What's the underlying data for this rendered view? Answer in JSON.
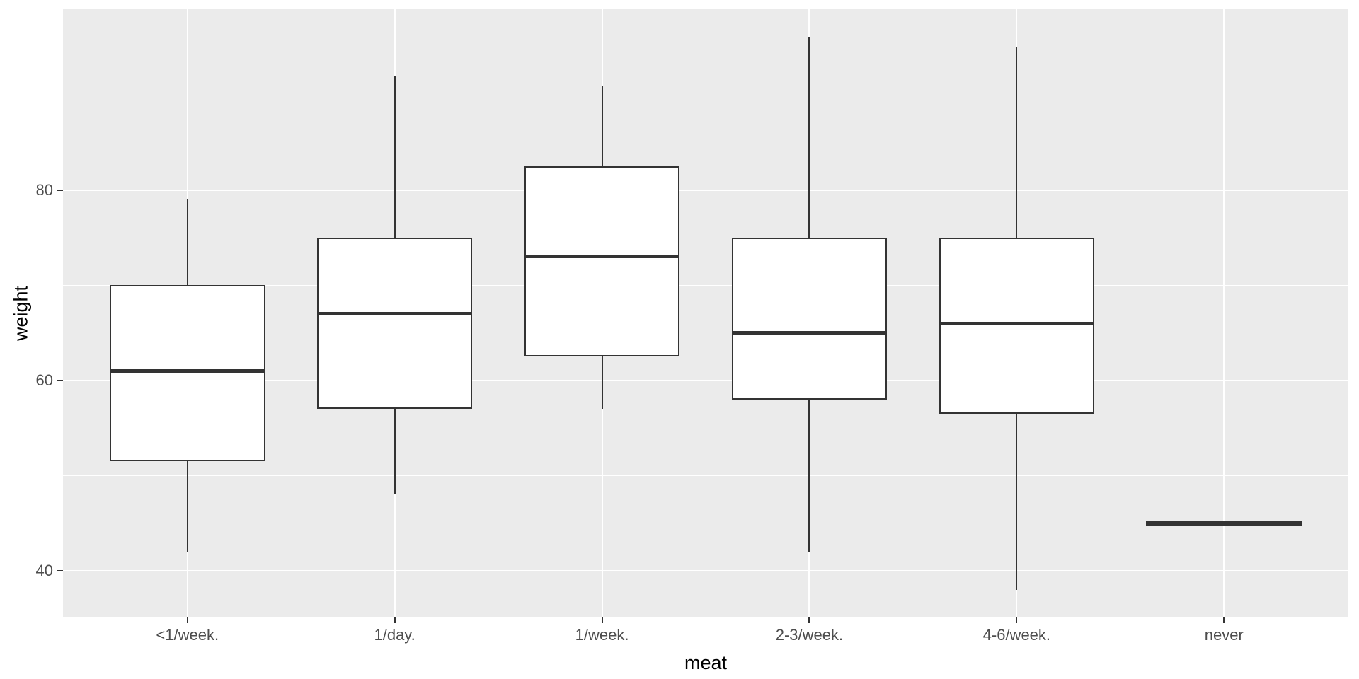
{
  "chart_data": {
    "type": "boxplot",
    "title": "",
    "xlabel": "meat",
    "ylabel": "weight",
    "categories": [
      "<1/week.",
      "1/day.",
      "1/week.",
      "2-3/week.",
      "4-6/week.",
      "never"
    ],
    "boxes": [
      {
        "category": "<1/week.",
        "min": 42,
        "q1": 51.5,
        "median": 61,
        "q3": 70,
        "max": 79
      },
      {
        "category": "1/day.",
        "min": 48,
        "q1": 57,
        "median": 67,
        "q3": 75,
        "max": 92
      },
      {
        "category": "1/week.",
        "min": 57,
        "q1": 62.5,
        "median": 73,
        "q3": 82.5,
        "max": 91
      },
      {
        "category": "2-3/week.",
        "min": 42,
        "q1": 58,
        "median": 65,
        "q3": 75,
        "max": 96
      },
      {
        "category": "4-6/week.",
        "min": 38,
        "q1": 56.5,
        "median": 66,
        "q3": 75,
        "max": 95
      },
      {
        "category": "never",
        "min": 45,
        "q1": 45,
        "median": 45,
        "q3": 45,
        "max": 45
      }
    ],
    "y_ticks": [
      40,
      60,
      80
    ],
    "y_minor_gridlines": [
      50,
      70,
      90
    ],
    "ylim": [
      35.1,
      99.0
    ],
    "grid": true,
    "legend": "none",
    "box_width_fraction": 0.75,
    "colors": {
      "figure_background": "#FFFFFF",
      "panel_background": "#EBEBEB",
      "gridline": "#FFFFFF",
      "box_fill": "#FFFFFF",
      "box_border": "#333333",
      "tick_label": "#4D4D4D",
      "axis_title": "#000000"
    }
  }
}
